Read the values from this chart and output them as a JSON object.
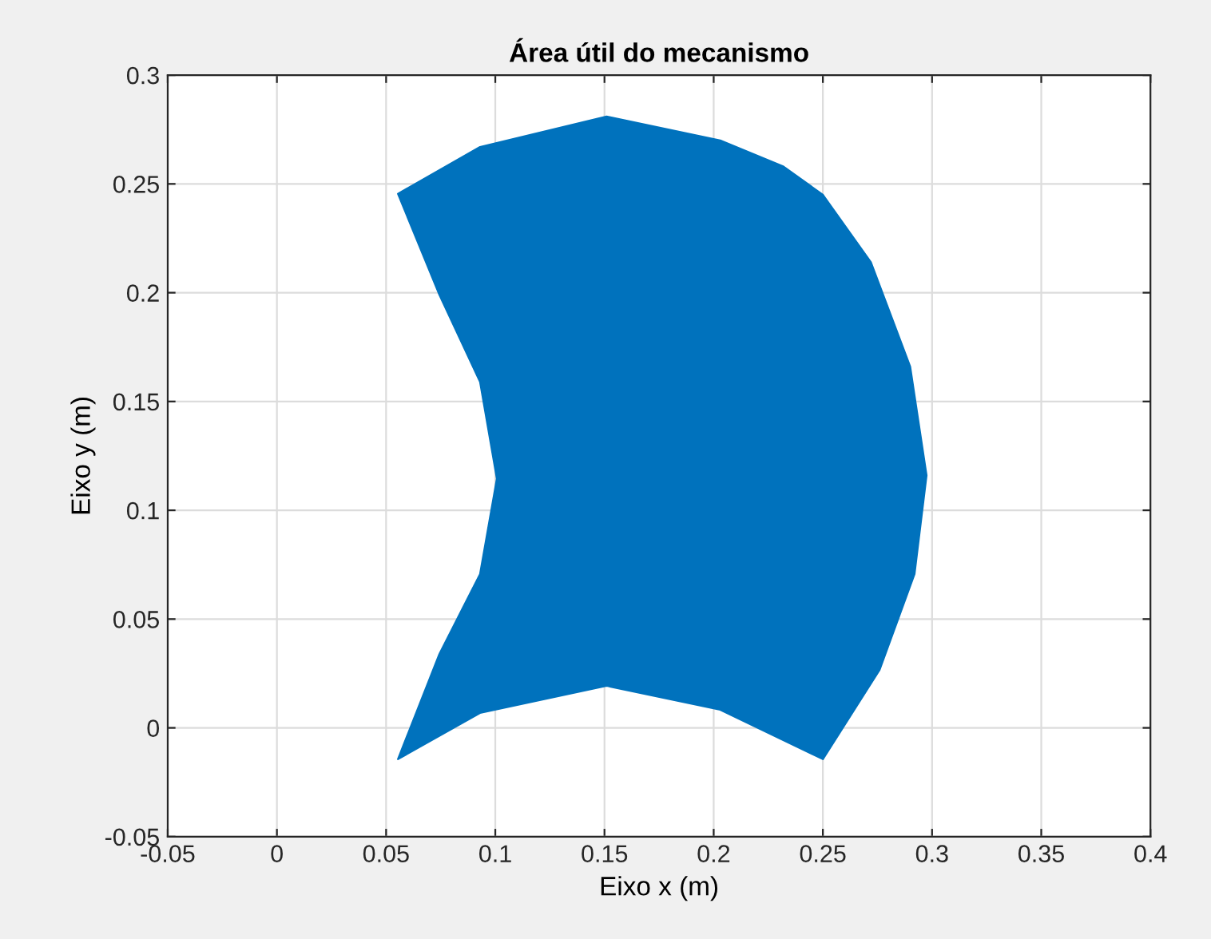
{
  "chart_data": {
    "type": "area",
    "title": "Área útil do mecanismo",
    "xlabel": "Eixo x (m)",
    "ylabel": "Eixo y (m)",
    "x": [
      0.0554,
      0.093,
      0.151,
      0.203,
      0.232,
      0.25,
      0.272,
      0.29,
      0.2975,
      0.292,
      0.276,
      0.25,
      0.203,
      0.151,
      0.093,
      0.0554,
      0.0744,
      0.093,
      0.1007,
      0.093,
      0.0744,
      0.0554
    ],
    "values": [
      0.2455,
      0.267,
      0.281,
      0.27,
      0.258,
      0.245,
      0.214,
      0.166,
      0.116,
      0.0707,
      0.0267,
      -0.0144,
      0.0083,
      0.0193,
      0.0068,
      -0.0144,
      0.034,
      0.0707,
      0.1145,
      0.159,
      0.199,
      0.2455
    ],
    "color": "#0072bd",
    "xlim": [
      -0.05,
      0.4
    ],
    "xticks": [
      -0.05,
      0,
      0.05,
      0.1,
      0.15,
      0.2,
      0.25,
      0.3,
      0.35,
      0.4
    ],
    "ylim": [
      -0.05,
      0.3
    ],
    "yticks": [
      -0.05,
      0,
      0.05,
      0.1,
      0.15,
      0.2,
      0.25,
      0.3
    ],
    "grid": true,
    "legend": false
  }
}
